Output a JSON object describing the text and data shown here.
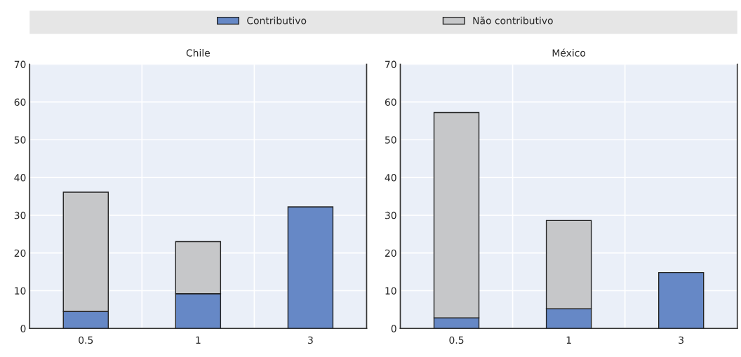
{
  "chart_data": [
    {
      "type": "bar",
      "title": "Chile",
      "categories": [
        "0.5",
        "1",
        "3"
      ],
      "stacked": true,
      "ylim": [
        0,
        70
      ],
      "yticks": [
        0,
        10,
        20,
        30,
        40,
        50,
        60,
        70
      ],
      "grid": true,
      "legend": "top",
      "series": [
        {
          "name": "Contributivo",
          "color": "#6688c6",
          "values": [
            4.5,
            9.2,
            32.2
          ]
        },
        {
          "name": "Não contributivo",
          "color": "#c6c7c9",
          "values": [
            31.6,
            13.8,
            null
          ]
        }
      ]
    },
    {
      "type": "bar",
      "title": "México",
      "categories": [
        "0.5",
        "1",
        "3"
      ],
      "stacked": true,
      "ylim": [
        0,
        70
      ],
      "yticks": [
        0,
        10,
        20,
        30,
        40,
        50,
        60,
        70
      ],
      "grid": true,
      "legend": "top",
      "series": [
        {
          "color": "#6688c6",
          "values": [
            2.8,
            5.2,
            14.8
          ]
        },
        {
          "color": "#c6c7c9",
          "values": [
            54.4,
            23.4,
            null
          ]
        }
      ]
    }
  ]
}
